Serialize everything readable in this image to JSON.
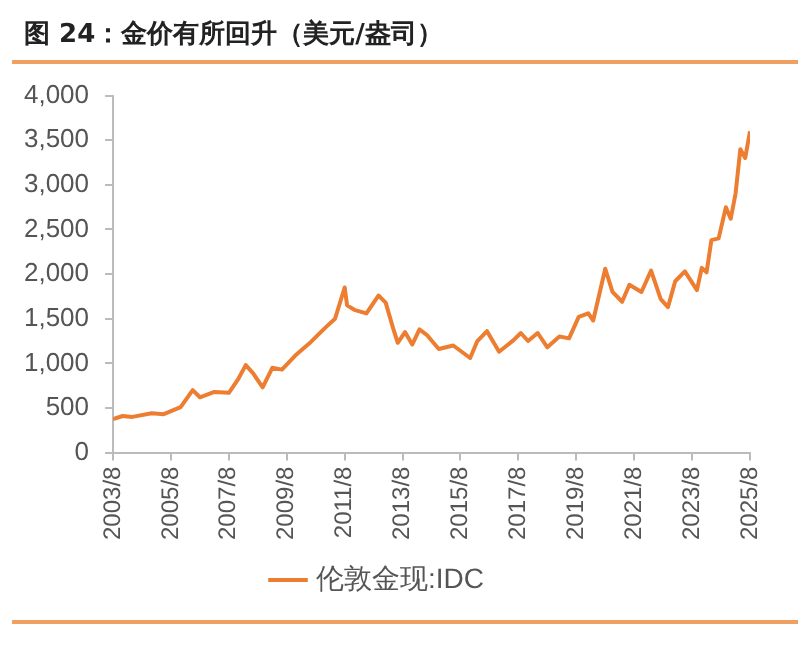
{
  "chart_data": {
    "type": "line",
    "title": "图 24：金价有所回升（美元/盎司）",
    "x": [
      "2003-08",
      "2003-12",
      "2004-04",
      "2004-12",
      "2005-05",
      "2005-12",
      "2006-05",
      "2006-08",
      "2007-02",
      "2007-08",
      "2007-12",
      "2008-03",
      "2008-06",
      "2008-10",
      "2009-02",
      "2009-06",
      "2009-12",
      "2010-06",
      "2010-12",
      "2011-04",
      "2011-08",
      "2011-09",
      "2011-12",
      "2012-05",
      "2012-10",
      "2013-01",
      "2013-04",
      "2013-06",
      "2013-09",
      "2013-12",
      "2014-03",
      "2014-06",
      "2014-11",
      "2015-05",
      "2015-12",
      "2016-03",
      "2016-07",
      "2016-12",
      "2017-06",
      "2017-09",
      "2017-12",
      "2018-04",
      "2018-08",
      "2019-01",
      "2019-05",
      "2019-09",
      "2020-01",
      "2020-03",
      "2020-08",
      "2020-11",
      "2021-03",
      "2021-06",
      "2021-11",
      "2022-03",
      "2022-07",
      "2022-10",
      "2023-01",
      "2023-05",
      "2023-10",
      "2023-12",
      "2024-02",
      "2024-04",
      "2024-07",
      "2024-10",
      "2024-12",
      "2025-02",
      "2025-04",
      "2025-06",
      "2025-08"
    ],
    "series": [
      {
        "name": "伦敦金现:IDC",
        "color": "#ed7d31",
        "values": [
          375,
          410,
          400,
          440,
          430,
          510,
          700,
          620,
          680,
          670,
          830,
          980,
          890,
          730,
          950,
          930,
          1100,
          1240,
          1400,
          1500,
          1850,
          1650,
          1600,
          1560,
          1760,
          1680,
          1400,
          1230,
          1350,
          1210,
          1380,
          1320,
          1160,
          1200,
          1060,
          1250,
          1360,
          1130,
          1260,
          1340,
          1250,
          1340,
          1180,
          1300,
          1280,
          1520,
          1560,
          1480,
          2060,
          1800,
          1690,
          1880,
          1800,
          2040,
          1720,
          1630,
          1920,
          2030,
          1820,
          2070,
          2020,
          2380,
          2400,
          2750,
          2620,
          2900,
          3400,
          3300,
          3600
        ]
      }
    ],
    "xlim": [
      "2003-08",
      "2025-08"
    ],
    "xticks": [
      {
        "value": "2003-08",
        "label": "2003/8"
      },
      {
        "value": "2005-08",
        "label": "2005/8"
      },
      {
        "value": "2007-08",
        "label": "2007/8"
      },
      {
        "value": "2009-08",
        "label": "2009/8"
      },
      {
        "value": "2011-08",
        "label": "2011/8"
      },
      {
        "value": "2013-08",
        "label": "2013/8"
      },
      {
        "value": "2015-08",
        "label": "2015/8"
      },
      {
        "value": "2017-08",
        "label": "2017/8"
      },
      {
        "value": "2019-08",
        "label": "2019/8"
      },
      {
        "value": "2021-08",
        "label": "2021/8"
      },
      {
        "value": "2023-08",
        "label": "2023/8"
      },
      {
        "value": "2025-08",
        "label": "2025/8"
      }
    ],
    "ylim": [
      0,
      4000
    ],
    "yticks": [
      {
        "value": 0,
        "label": "0"
      },
      {
        "value": 500,
        "label": "500"
      },
      {
        "value": 1000,
        "label": "1,000"
      },
      {
        "value": 1500,
        "label": "1,500"
      },
      {
        "value": 2000,
        "label": "2,000"
      },
      {
        "value": 2500,
        "label": "2,500"
      },
      {
        "value": 3000,
        "label": "3,000"
      },
      {
        "value": 3500,
        "label": "3,500"
      },
      {
        "value": 4000,
        "label": "4,000"
      }
    ],
    "grid": false,
    "legend": "bottom",
    "marker": "none",
    "line_style": "solid"
  }
}
